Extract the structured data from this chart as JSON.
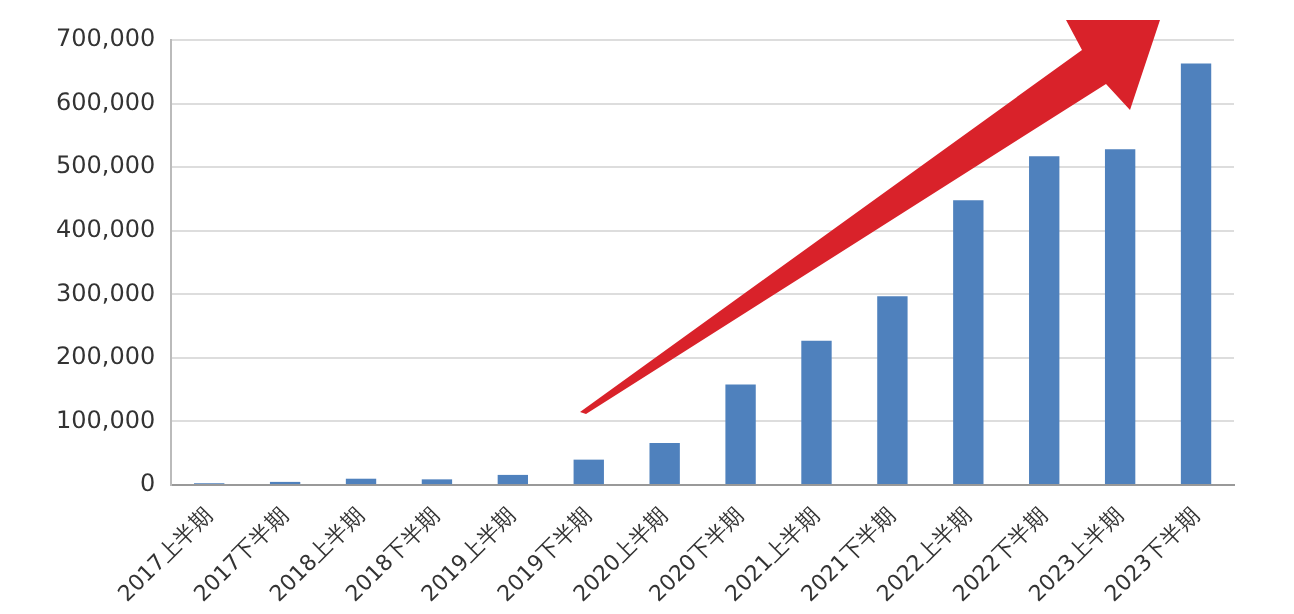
{
  "chart_data": {
    "type": "bar",
    "categories": [
      "2017上半期",
      "2017下半期",
      "2018上半期",
      "2018下半期",
      "2019上半期",
      "2019下半期",
      "2020上半期",
      "2020下半期",
      "2021上半期",
      "2021下半期",
      "2022上半期",
      "2022下半期",
      "2023上半期",
      "2023下半期"
    ],
    "values": [
      3000,
      5000,
      10000,
      9000,
      16000,
      40000,
      66000,
      158000,
      227000,
      297000,
      448000,
      517000,
      528000,
      663000
    ],
    "color": "#4f81bd",
    "ylim": [
      0,
      700000
    ],
    "yticks": [
      0,
      {
        "value": 100000,
        "label": "100,000"
      },
      {
        "value": 200000,
        "label": "200,000"
      },
      {
        "value": 300000,
        "label": "300,000"
      },
      {
        "value": 400000,
        "label": "400,000"
      },
      {
        "value": 500000,
        "label": "500,000"
      },
      {
        "value": 600000,
        "label": "600,000"
      },
      {
        "value": 700000,
        "label": "700,000"
      }
    ],
    "grid": "y",
    "legend": false
  }
}
